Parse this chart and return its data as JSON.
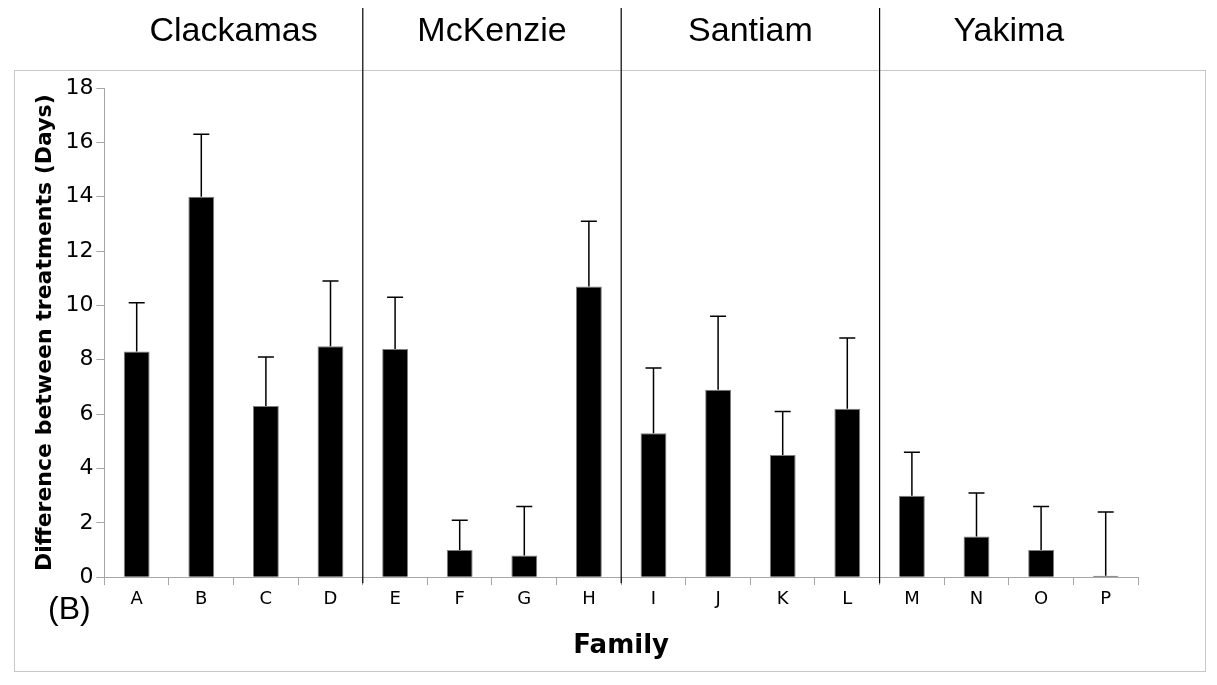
{
  "chart_data": {
    "type": "bar",
    "xlabel": "Family",
    "ylabel": "Difference between treatments (Days)",
    "categories": [
      "A",
      "B",
      "C",
      "D",
      "E",
      "F",
      "G",
      "H",
      "I",
      "J",
      "K",
      "L",
      "M",
      "N",
      "O",
      "P"
    ],
    "values": [
      8.3,
      14.0,
      6.3,
      8.5,
      8.4,
      1.0,
      0.8,
      10.7,
      5.3,
      6.9,
      4.5,
      6.2,
      3.0,
      1.5,
      1.0,
      0.05
    ],
    "errors": [
      [
        8.3,
        10.1
      ],
      [
        14.0,
        16.3
      ],
      [
        6.3,
        8.1
      ],
      [
        8.5,
        10.9
      ],
      [
        8.4,
        10.3
      ],
      [
        1.0,
        2.1
      ],
      [
        0.8,
        2.6
      ],
      [
        10.7,
        13.1
      ],
      [
        5.3,
        7.7
      ],
      [
        6.9,
        9.6
      ],
      [
        4.5,
        6.1
      ],
      [
        6.2,
        8.8
      ],
      [
        3.0,
        4.6
      ],
      [
        1.5,
        3.1
      ],
      [
        1.0,
        2.6
      ],
      [
        0.05,
        2.4
      ]
    ],
    "color": "#000000",
    "ylim": [
      0,
      18
    ],
    "yticks": [
      0,
      2,
      4,
      6,
      8,
      10,
      12,
      14,
      16,
      18
    ],
    "grid": false,
    "legend": false,
    "annotations": [
      "Clackamas",
      "McKenzie",
      "Santiam",
      "Yakima",
      "(B)"
    ]
  }
}
